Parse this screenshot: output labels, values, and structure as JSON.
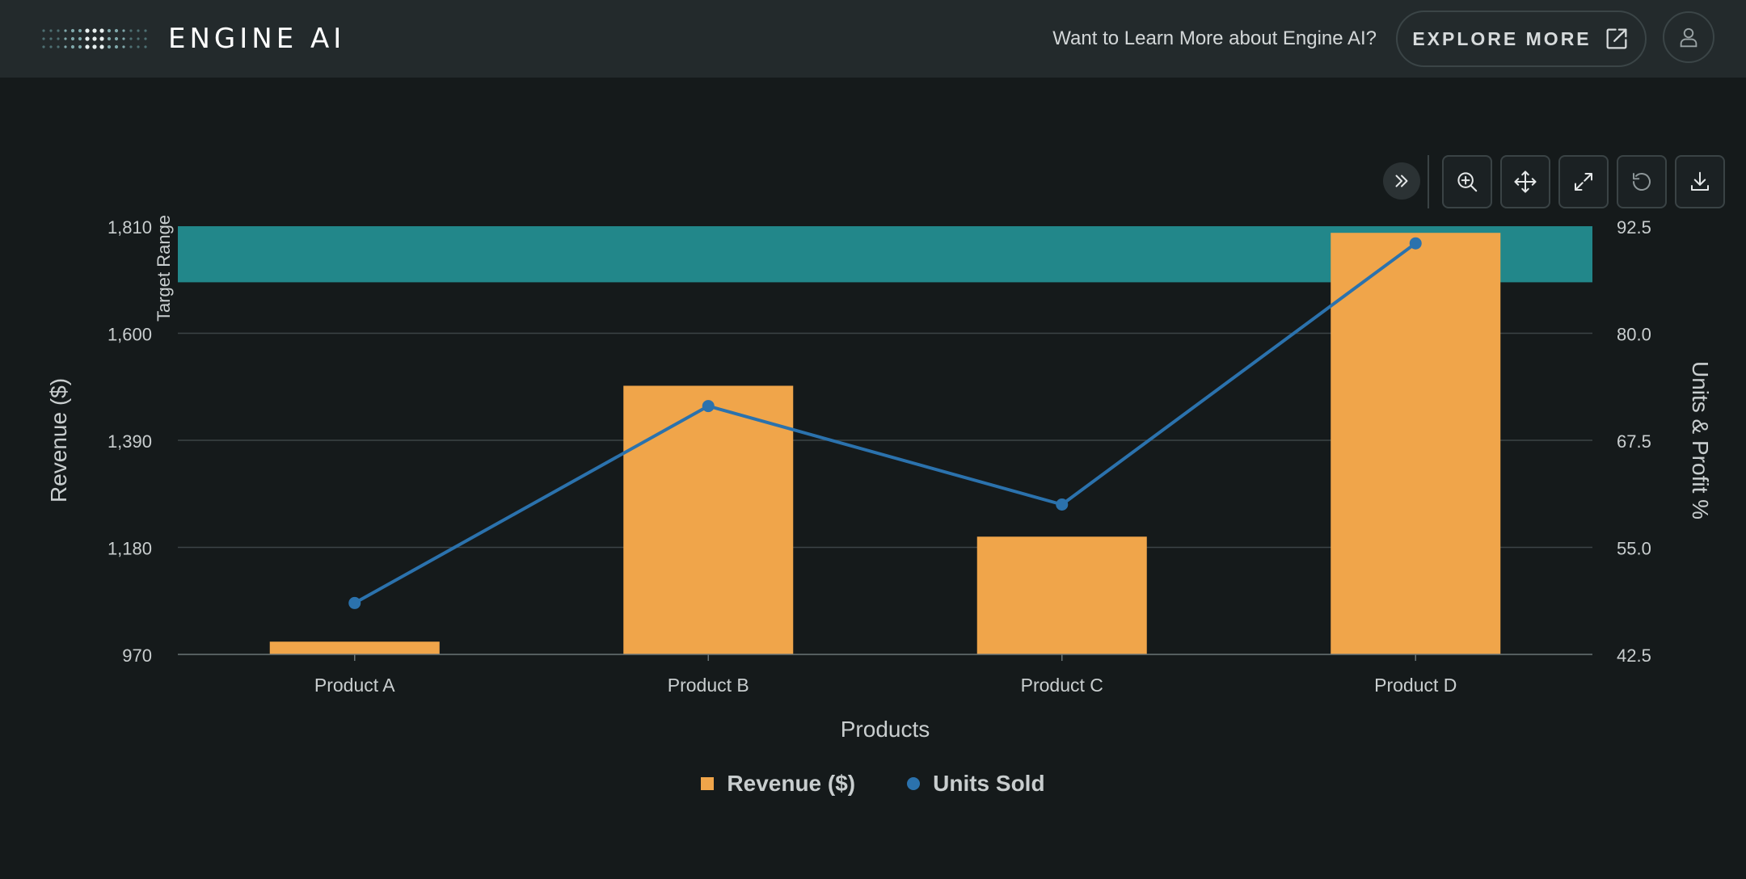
{
  "header": {
    "brand": "ENGINE AI",
    "promo_text": "Want to Learn More about Engine AI?",
    "explore_label": "EXPLORE MORE",
    "icons": [
      "logo-dots-icon",
      "external-link-icon",
      "user-icon"
    ]
  },
  "toolbar": {
    "icons": [
      "collapse-icon",
      "zoom-icon",
      "pan-icon",
      "fullscreen-icon",
      "reset-icon",
      "download-icon"
    ]
  },
  "chart_data": {
    "type": "bar",
    "categories": [
      "Product A",
      "Product B",
      "Product C",
      "Product D"
    ],
    "series": [
      {
        "name": "Revenue ($)",
        "type": "bar",
        "axis": "left",
        "color": "#f0a54a",
        "values": [
          995,
          1497,
          1201,
          1797
        ]
      },
      {
        "name": "Units Sold",
        "type": "line",
        "axis": "right",
        "color": "#2b72ad",
        "values": [
          48.5,
          71.5,
          60.0,
          90.5
        ]
      }
    ],
    "xlabel": "Products",
    "ylabel": "Revenue ($)",
    "y2label": "Units & Profit %",
    "ylim": [
      970,
      1810
    ],
    "y2lim": [
      42.5,
      92.5
    ],
    "yticks": [
      "970",
      "1,180",
      "1,390",
      "1,600",
      "1,810"
    ],
    "y2ticks": [
      "42.5",
      "55.0",
      "67.5",
      "80.0",
      "92.5"
    ],
    "band": {
      "label": "Target Range",
      "from": 1700,
      "to": 1810,
      "color": "#22878a"
    },
    "grid": true,
    "legend": "bottom-center"
  }
}
